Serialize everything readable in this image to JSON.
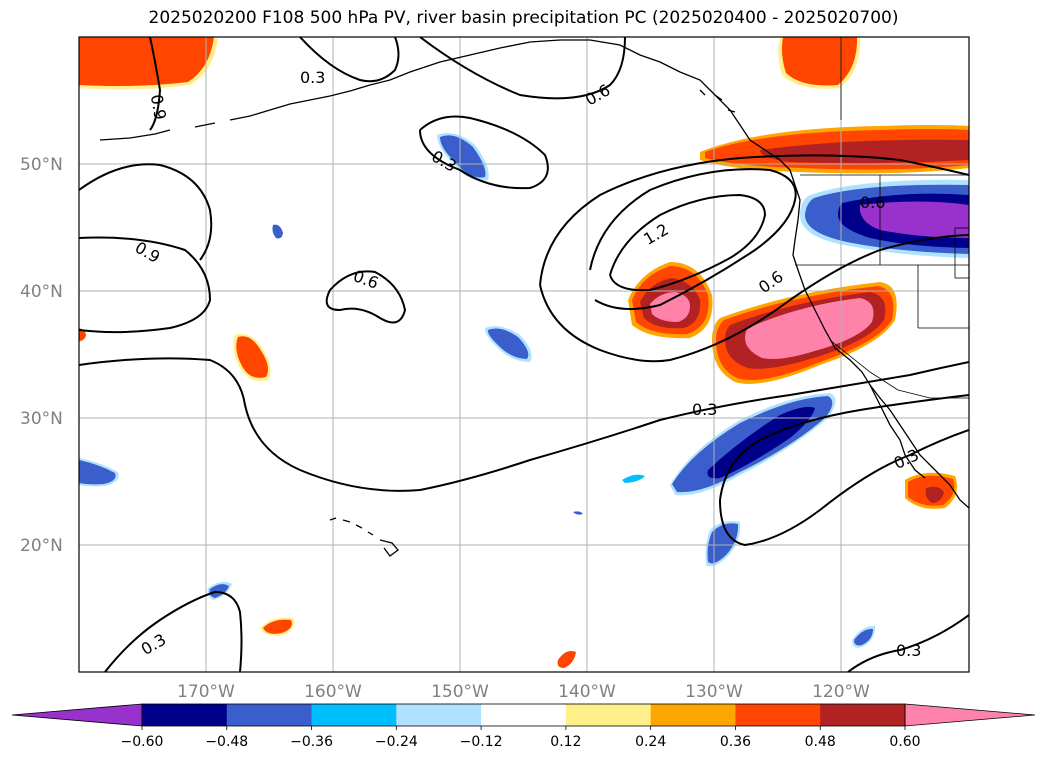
{
  "title": "2025020200 F108 500 hPa PV, river basin precipitation PC (2025020400 - 2025020700)",
  "map": {
    "lon_range": [
      -180,
      -110
    ],
    "lat_range": [
      10,
      60
    ],
    "lat_labels": [
      "50°N",
      "40°N",
      "30°N",
      "20°N"
    ],
    "lon_labels": [
      "170°W",
      "160°W",
      "150°W",
      "140°W",
      "130°W",
      "120°W"
    ],
    "gridlines": true,
    "contour_labels": [
      "0.3",
      "0.6",
      "0.9",
      "1.2",
      "0.6",
      "0.3",
      "0.6",
      "0.9",
      "0.6",
      "0.3",
      "0.3",
      "0.3",
      "0.3"
    ]
  },
  "colorbar": {
    "labels": [
      "−0.60",
      "−0.48",
      "−0.36",
      "−0.24",
      "−0.12",
      "0.12",
      "0.24",
      "0.36",
      "0.48",
      "0.60"
    ],
    "colors": [
      "#9932cc",
      "#00008b",
      "#3a5fcd",
      "#00bfff",
      "#b0e2ff",
      "#ffffff",
      "#fff08c",
      "#ffa500",
      "#ff4500",
      "#b22222",
      "#ff82ab"
    ],
    "extend": "both"
  }
}
